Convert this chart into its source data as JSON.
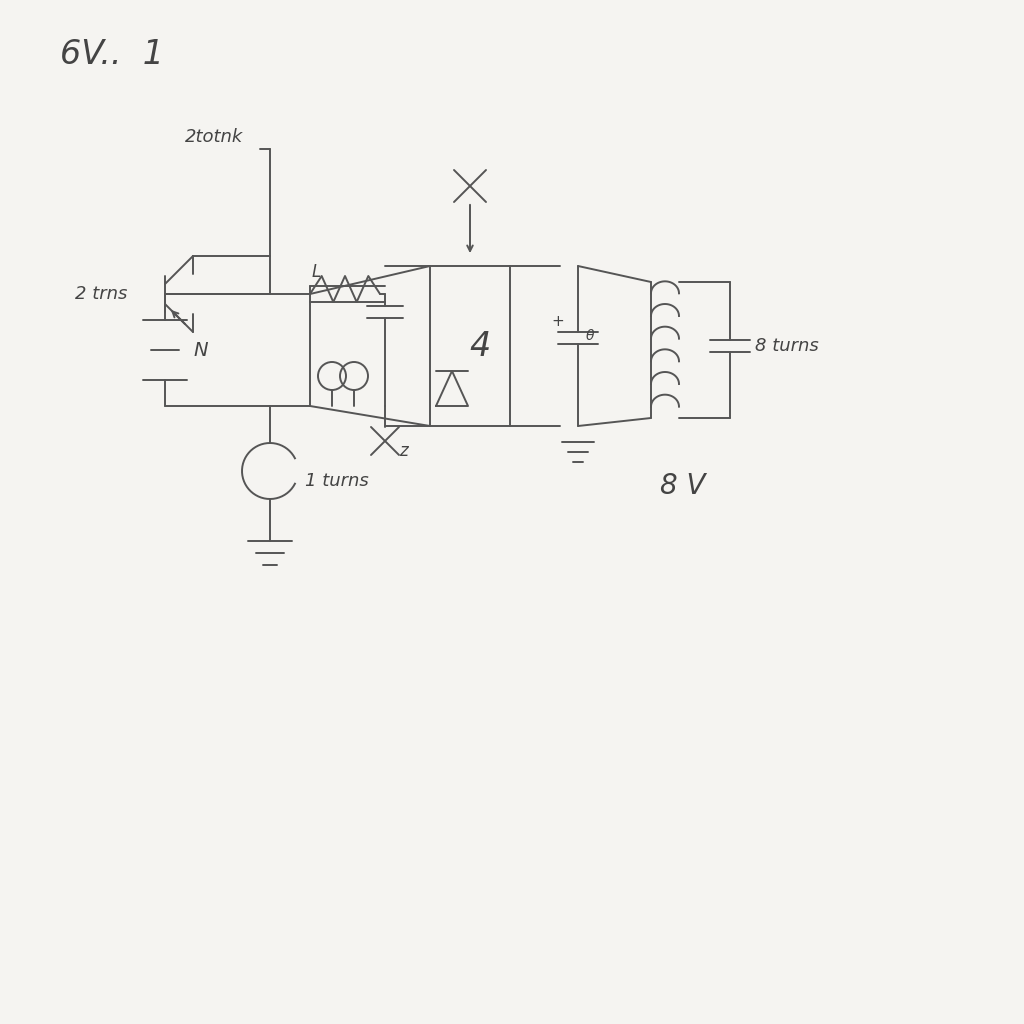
{
  "background_color": "#f5f4f1",
  "line_color": "#555555",
  "line_width": 1.4,
  "text_color": "#444444",
  "title": "6V..  1",
  "label_2totnk": "2totnk",
  "label_2trns": "2 trns",
  "label_N": "N",
  "label_1turns": "1 turns",
  "label_xz": "z",
  "label_8turns": "8 turns",
  "label_8V": "8 V",
  "label_L": "L",
  "label_plus": "+",
  "label_theta": "θ"
}
